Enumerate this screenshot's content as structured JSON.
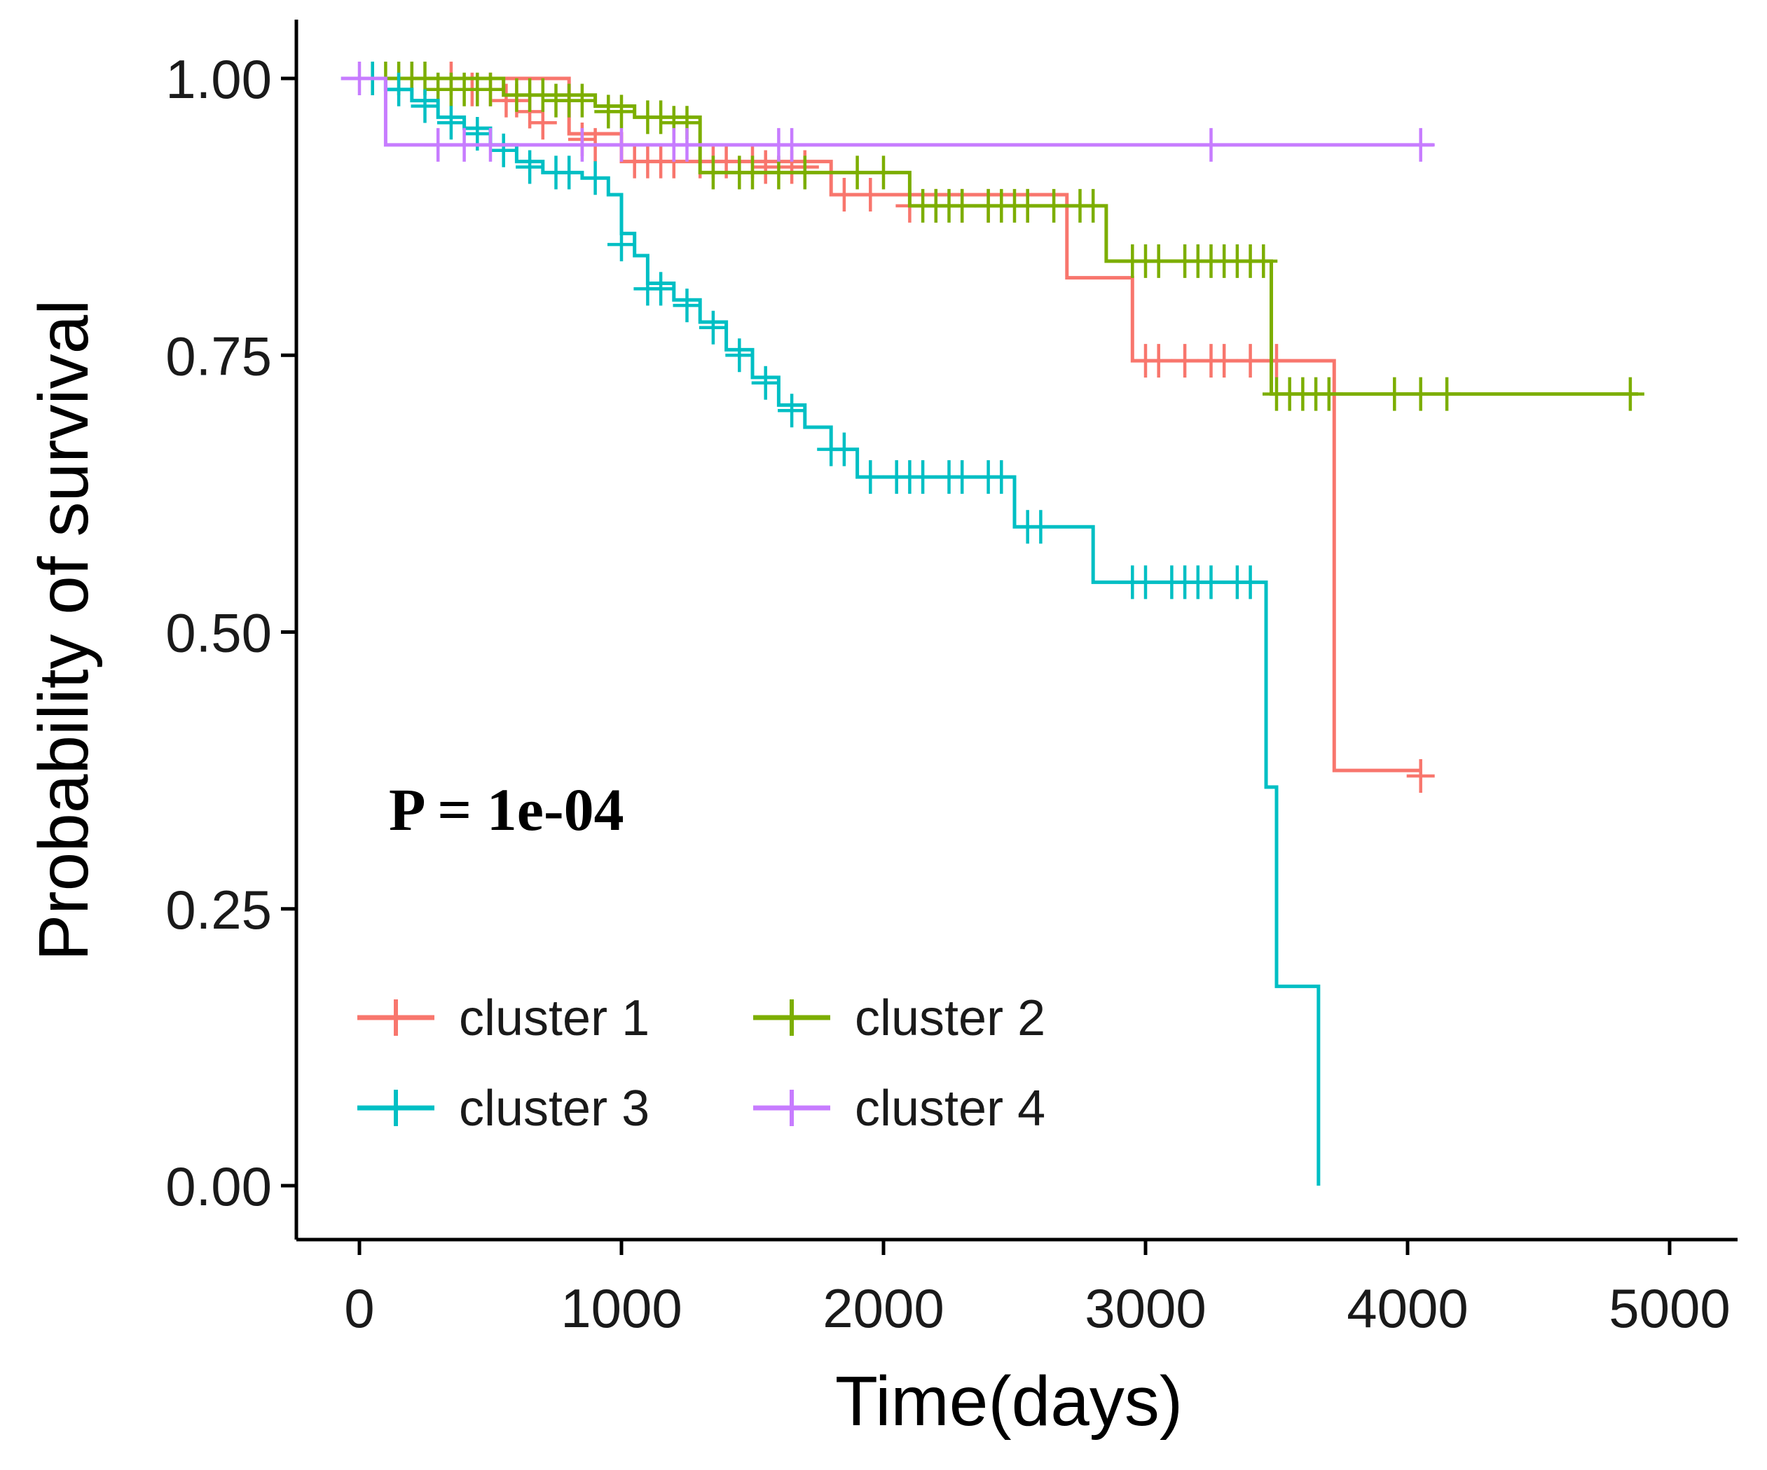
{
  "chart_data": {
    "type": "line",
    "xlabel": "Time(days)",
    "ylabel": "Probability of survival",
    "xlim": [
      -200,
      5000
    ],
    "ylim": [
      -0.05,
      1.05
    ],
    "x_ticks": [
      0,
      1000,
      2000,
      3000,
      4000,
      5000
    ],
    "x_tick_labels": [
      "0",
      "1000",
      "2000",
      "3000",
      "4000",
      "5000"
    ],
    "y_ticks": [
      0,
      0.25,
      0.5,
      0.75,
      1.0
    ],
    "y_tick_labels": [
      "0.00",
      "0.25",
      "0.50",
      "0.75",
      "1.00"
    ],
    "grid": false,
    "annotation": "P = 1e-04",
    "legend": {
      "position": "bottom-left",
      "entries": [
        {
          "name": "cluster 1",
          "color": "#F8766D"
        },
        {
          "name": "cluster 2",
          "color": "#7CAE00"
        },
        {
          "name": "cluster 3",
          "color": "#00BFC4"
        },
        {
          "name": "cluster 4",
          "color": "#C77CFF"
        }
      ]
    },
    "series": [
      {
        "name": "cluster 1",
        "color": "#F8766D",
        "steps": [
          [
            0,
            1.0
          ],
          [
            800,
            0.95
          ],
          [
            1000,
            0.925
          ],
          [
            1800,
            0.895
          ],
          [
            2700,
            0.82
          ],
          [
            2950,
            0.745
          ],
          [
            3720,
            0.375
          ],
          [
            4050,
            0.375
          ]
        ],
        "censored": [
          [
            200,
            1.0
          ],
          [
            350,
            1.0
          ],
          [
            430,
            0.99
          ],
          [
            500,
            0.99
          ],
          [
            560,
            0.98
          ],
          [
            600,
            0.98
          ],
          [
            650,
            0.97
          ],
          [
            700,
            0.96
          ],
          [
            850,
            0.945
          ],
          [
            900,
            0.94
          ],
          [
            1050,
            0.925
          ],
          [
            1100,
            0.925
          ],
          [
            1150,
            0.925
          ],
          [
            1200,
            0.925
          ],
          [
            1300,
            0.925
          ],
          [
            1350,
            0.925
          ],
          [
            1400,
            0.925
          ],
          [
            1500,
            0.925
          ],
          [
            1550,
            0.92
          ],
          [
            1650,
            0.92
          ],
          [
            1700,
            0.92
          ],
          [
            1850,
            0.895
          ],
          [
            1950,
            0.895
          ],
          [
            2100,
            0.885
          ],
          [
            2200,
            0.885
          ],
          [
            2300,
            0.885
          ],
          [
            2400,
            0.885
          ],
          [
            2550,
            0.885
          ],
          [
            3000,
            0.745
          ],
          [
            3050,
            0.745
          ],
          [
            3150,
            0.745
          ],
          [
            3250,
            0.745
          ],
          [
            3300,
            0.745
          ],
          [
            3400,
            0.745
          ],
          [
            3500,
            0.745
          ],
          [
            4050,
            0.37
          ]
        ]
      },
      {
        "name": "cluster 2",
        "color": "#7CAE00",
        "steps": [
          [
            0,
            1.0
          ],
          [
            550,
            0.985
          ],
          [
            900,
            0.975
          ],
          [
            1050,
            0.965
          ],
          [
            1300,
            0.915
          ],
          [
            2100,
            0.885
          ],
          [
            2850,
            0.835
          ],
          [
            3480,
            0.715
          ],
          [
            4880,
            0.715
          ]
        ],
        "censored": [
          [
            50,
            1.0
          ],
          [
            100,
            1.0
          ],
          [
            150,
            1.0
          ],
          [
            200,
            1.0
          ],
          [
            250,
            1.0
          ],
          [
            300,
            0.99
          ],
          [
            350,
            0.99
          ],
          [
            400,
            0.99
          ],
          [
            450,
            0.99
          ],
          [
            500,
            0.99
          ],
          [
            600,
            0.985
          ],
          [
            650,
            0.985
          ],
          [
            700,
            0.985
          ],
          [
            750,
            0.98
          ],
          [
            800,
            0.98
          ],
          [
            850,
            0.98
          ],
          [
            950,
            0.97
          ],
          [
            1000,
            0.97
          ],
          [
            1100,
            0.965
          ],
          [
            1150,
            0.965
          ],
          [
            1200,
            0.96
          ],
          [
            1250,
            0.96
          ],
          [
            1350,
            0.915
          ],
          [
            1450,
            0.915
          ],
          [
            1500,
            0.915
          ],
          [
            1600,
            0.915
          ],
          [
            1700,
            0.915
          ],
          [
            1900,
            0.915
          ],
          [
            2000,
            0.915
          ],
          [
            2150,
            0.885
          ],
          [
            2200,
            0.885
          ],
          [
            2250,
            0.885
          ],
          [
            2300,
            0.885
          ],
          [
            2400,
            0.885
          ],
          [
            2450,
            0.885
          ],
          [
            2500,
            0.885
          ],
          [
            2550,
            0.885
          ],
          [
            2650,
            0.885
          ],
          [
            2750,
            0.885
          ],
          [
            2800,
            0.885
          ],
          [
            2950,
            0.835
          ],
          [
            3000,
            0.835
          ],
          [
            3050,
            0.835
          ],
          [
            3150,
            0.835
          ],
          [
            3200,
            0.835
          ],
          [
            3250,
            0.835
          ],
          [
            3300,
            0.835
          ],
          [
            3350,
            0.835
          ],
          [
            3400,
            0.835
          ],
          [
            3450,
            0.835
          ],
          [
            3500,
            0.715
          ],
          [
            3550,
            0.715
          ],
          [
            3600,
            0.715
          ],
          [
            3650,
            0.715
          ],
          [
            3700,
            0.715
          ],
          [
            3950,
            0.715
          ],
          [
            4050,
            0.715
          ],
          [
            4150,
            0.715
          ],
          [
            4850,
            0.715
          ]
        ]
      },
      {
        "name": "cluster 3",
        "color": "#00BFC4",
        "steps": [
          [
            -70,
            1.0
          ],
          [
            100,
            0.99
          ],
          [
            200,
            0.98
          ],
          [
            300,
            0.965
          ],
          [
            400,
            0.955
          ],
          [
            500,
            0.94
          ],
          [
            600,
            0.925
          ],
          [
            700,
            0.915
          ],
          [
            850,
            0.91
          ],
          [
            950,
            0.895
          ],
          [
            1000,
            0.86
          ],
          [
            1050,
            0.84
          ],
          [
            1100,
            0.815
          ],
          [
            1200,
            0.8
          ],
          [
            1300,
            0.78
          ],
          [
            1400,
            0.755
          ],
          [
            1500,
            0.73
          ],
          [
            1600,
            0.705
          ],
          [
            1700,
            0.685
          ],
          [
            1800,
            0.665
          ],
          [
            1900,
            0.64
          ],
          [
            2500,
            0.595
          ],
          [
            2800,
            0.545
          ],
          [
            3460,
            0.36
          ],
          [
            3500,
            0.18
          ],
          [
            3660,
            0.0
          ]
        ],
        "censored": [
          [
            50,
            1.0
          ],
          [
            150,
            0.99
          ],
          [
            250,
            0.975
          ],
          [
            350,
            0.96
          ],
          [
            450,
            0.95
          ],
          [
            550,
            0.935
          ],
          [
            650,
            0.92
          ],
          [
            750,
            0.915
          ],
          [
            800,
            0.915
          ],
          [
            900,
            0.91
          ],
          [
            1000,
            0.85
          ],
          [
            1100,
            0.81
          ],
          [
            1150,
            0.81
          ],
          [
            1250,
            0.795
          ],
          [
            1350,
            0.775
          ],
          [
            1450,
            0.75
          ],
          [
            1550,
            0.725
          ],
          [
            1650,
            0.7
          ],
          [
            1800,
            0.665
          ],
          [
            1850,
            0.665
          ],
          [
            1950,
            0.64
          ],
          [
            2050,
            0.64
          ],
          [
            2100,
            0.64
          ],
          [
            2150,
            0.64
          ],
          [
            2250,
            0.64
          ],
          [
            2300,
            0.64
          ],
          [
            2400,
            0.64
          ],
          [
            2450,
            0.64
          ],
          [
            2550,
            0.595
          ],
          [
            2600,
            0.595
          ],
          [
            2950,
            0.545
          ],
          [
            3000,
            0.545
          ],
          [
            3100,
            0.545
          ],
          [
            3150,
            0.545
          ],
          [
            3200,
            0.545
          ],
          [
            3250,
            0.545
          ],
          [
            3350,
            0.545
          ],
          [
            3400,
            0.545
          ]
        ]
      },
      {
        "name": "cluster 4",
        "color": "#C77CFF",
        "steps": [
          [
            -70,
            1.0
          ],
          [
            100,
            0.94
          ],
          [
            4100,
            0.94
          ]
        ],
        "censored": [
          [
            0,
            1.0
          ],
          [
            300,
            0.94
          ],
          [
            400,
            0.94
          ],
          [
            500,
            0.94
          ],
          [
            850,
            0.94
          ],
          [
            1000,
            0.94
          ],
          [
            1200,
            0.94
          ],
          [
            1250,
            0.94
          ],
          [
            1600,
            0.94
          ],
          [
            1650,
            0.94
          ],
          [
            3250,
            0.94
          ],
          [
            4050,
            0.94
          ]
        ]
      }
    ]
  }
}
